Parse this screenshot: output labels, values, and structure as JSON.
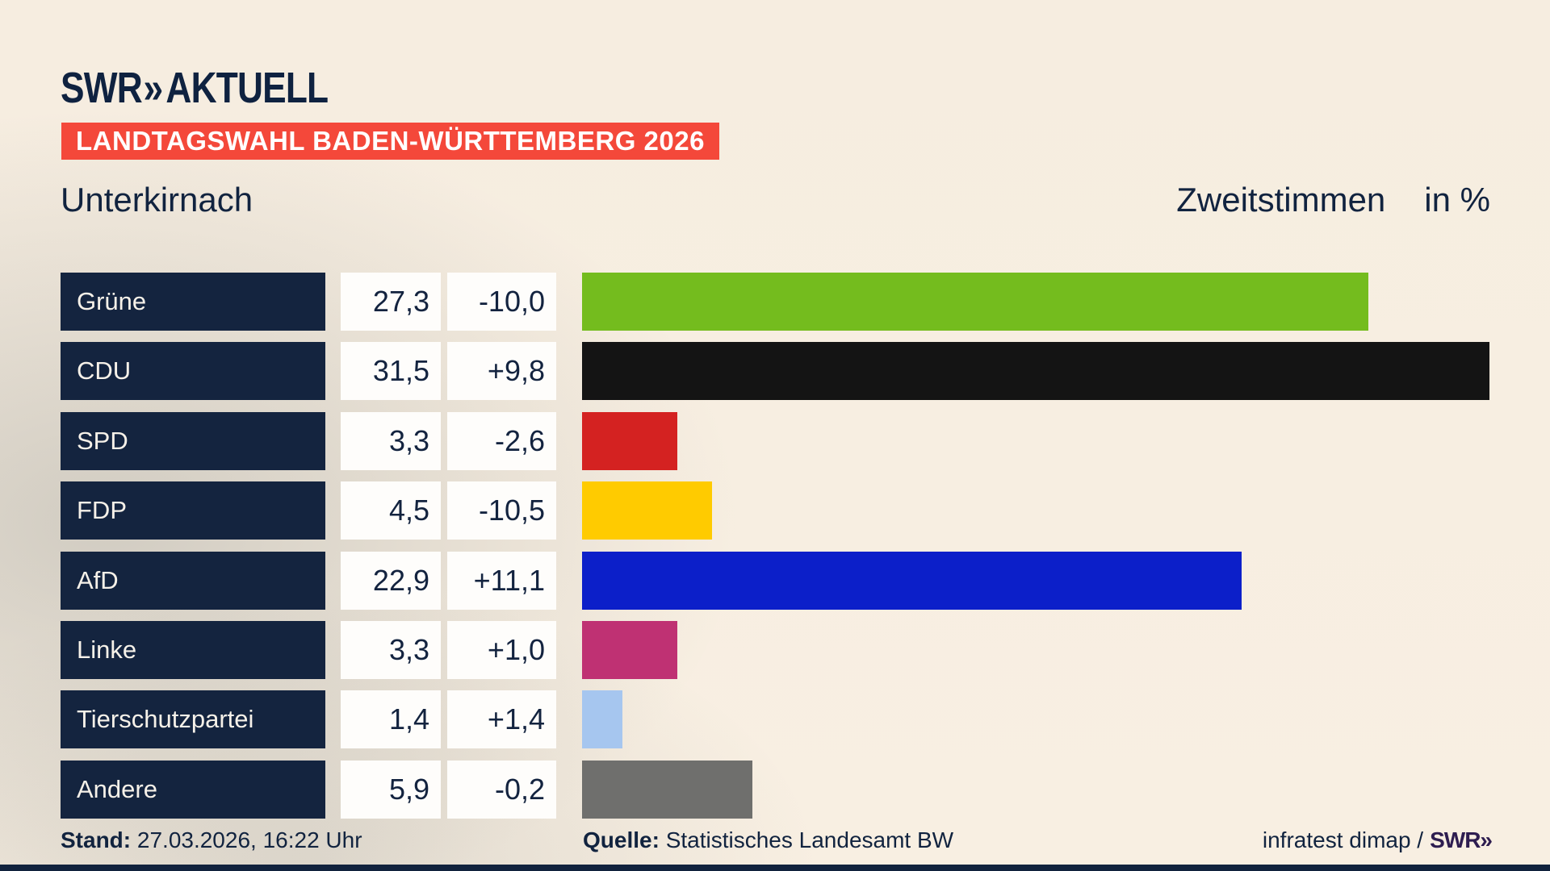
{
  "header": {
    "brand": "SWR",
    "brand_chevron": "»",
    "brand_suffix": "AKTUELL",
    "banner": "LANDTAGSWAHL BADEN-WÜRTTEMBERG 2026",
    "municipality": "Unterkirnach",
    "vote_type": "Zweitstimmen",
    "unit": "in %"
  },
  "chart_data": {
    "type": "bar",
    "orientation": "horizontal",
    "title": "Landtagswahl Baden-Württemberg 2026 — Unterkirnach, Zweitstimmen in %",
    "xlim": [
      0,
      31.5
    ],
    "grid": false,
    "legend": "none",
    "categories": [
      "Grüne",
      "CDU",
      "SPD",
      "FDP",
      "AfD",
      "Linke",
      "Tierschutzpartei",
      "Andere"
    ],
    "values": [
      27.3,
      31.5,
      3.3,
      4.5,
      22.9,
      3.3,
      1.4,
      5.9
    ],
    "diffs": [
      -10.0,
      9.8,
      -2.6,
      -10.5,
      11.1,
      1.0,
      1.4,
      -0.2
    ],
    "rows": [
      {
        "party": "Grüne",
        "value": 27.3,
        "value_label": "27,3",
        "diff_label": "-10,0",
        "color": "#74bc1e"
      },
      {
        "party": "CDU",
        "value": 31.5,
        "value_label": "31,5",
        "diff_label": "+9,8",
        "color": "#141414"
      },
      {
        "party": "SPD",
        "value": 3.3,
        "value_label": "3,3",
        "diff_label": "-2,6",
        "color": "#d42221"
      },
      {
        "party": "FDP",
        "value": 4.5,
        "value_label": "4,5",
        "diff_label": "-10,5",
        "color": "#ffcb00"
      },
      {
        "party": "AfD",
        "value": 22.9,
        "value_label": "22,9",
        "diff_label": "+11,1",
        "color": "#0c1fc9"
      },
      {
        "party": "Linke",
        "value": 3.3,
        "value_label": "3,3",
        "diff_label": "+1,0",
        "color": "#bf3173"
      },
      {
        "party": "Tierschutzpartei",
        "value": 1.4,
        "value_label": "1,4",
        "diff_label": "+1,4",
        "color": "#a6c6ef"
      },
      {
        "party": "Andere",
        "value": 5.9,
        "value_label": "5,9",
        "diff_label": "-0,2",
        "color": "#6f6f6d"
      }
    ]
  },
  "footer": {
    "stand_label": "Stand:",
    "stand_value": "27.03.2026, 16:22 Uhr",
    "source_label": "Quelle:",
    "source_value": "Statistisches Landesamt BW",
    "credit": "infratest dimap /",
    "credit_logo": "SWR»"
  },
  "colors": {
    "background_cream": "#f7eee2",
    "background_gray": "#d6d2cc",
    "navy": "#11233f",
    "banner_red": "#f4483a",
    "box_white": "#fefdfb",
    "swr_mark_purple": "#2e1d50"
  }
}
